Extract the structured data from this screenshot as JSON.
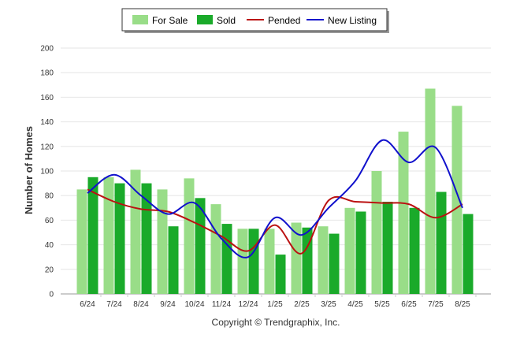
{
  "chart_data": {
    "type": "bar",
    "categories": [
      "6/24",
      "7/24",
      "8/24",
      "9/24",
      "10/24",
      "11/24",
      "12/24",
      "1/25",
      "2/25",
      "3/25",
      "4/25",
      "5/25",
      "6/25",
      "7/25",
      "8/25"
    ],
    "ylabel": "Number of Homes",
    "xlabel": "",
    "ylim": [
      0,
      200
    ],
    "yticks": [
      0,
      20,
      40,
      60,
      80,
      100,
      120,
      140,
      160,
      180,
      200
    ],
    "grid": true,
    "legend_position": "top-center",
    "series": [
      {
        "name": "For Sale",
        "kind": "bar",
        "color": "#99dd88",
        "values": [
          85,
          95,
          101,
          85,
          94,
          73,
          53,
          53,
          58,
          55,
          70,
          100,
          132,
          167,
          153
        ]
      },
      {
        "name": "Sold",
        "kind": "bar",
        "color": "#1aaa2a",
        "values": [
          95,
          90,
          90,
          55,
          78,
          57,
          53,
          32,
          54,
          49,
          67,
          75,
          70,
          83,
          65
        ]
      },
      {
        "name": "Pended",
        "kind": "line",
        "color": "#bb1111",
        "values": [
          85,
          75,
          69,
          67,
          58,
          47,
          35,
          56,
          33,
          76,
          75,
          74,
          73,
          62,
          73
        ]
      },
      {
        "name": "New Listing",
        "kind": "line",
        "color": "#1111cc",
        "values": [
          82,
          97,
          80,
          65,
          74,
          45,
          30,
          62,
          48,
          70,
          92,
          125,
          107,
          119,
          70
        ]
      }
    ]
  },
  "footer": {
    "copyright": "Copyright © Trendgraphix, Inc."
  }
}
